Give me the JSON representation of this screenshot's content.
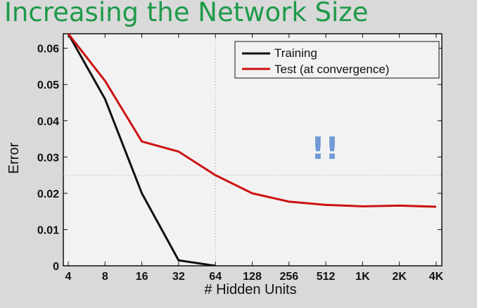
{
  "slide": {
    "title": "Increasing the Network Size"
  },
  "chart_data": {
    "type": "line",
    "title": "",
    "xlabel": "# Hidden Units",
    "ylabel": "Error",
    "x_categories": [
      "4",
      "8",
      "16",
      "32",
      "64",
      "128",
      "256",
      "512",
      "1K",
      "2K",
      "4K"
    ],
    "yticks": [
      "0",
      "0.01",
      "0.02",
      "0.03",
      "0.04",
      "0.05",
      "0.06"
    ],
    "ylim": [
      0,
      0.064
    ],
    "grid": "partial (vertical at 64, horizontal at 0.025)",
    "legend_position": "top-right",
    "series": [
      {
        "name": "Training",
        "color": "#111111",
        "points": [
          {
            "x": "4",
            "y": 0.064
          },
          {
            "x": "8",
            "y": 0.046
          },
          {
            "x": "16",
            "y": 0.02
          },
          {
            "x": "32",
            "y": 0.0015
          },
          {
            "x": "64",
            "y": 0.0
          }
        ]
      },
      {
        "name": "Test (at convergence)",
        "color": "#cc1111",
        "points": [
          {
            "x": "4",
            "y": 0.064
          },
          {
            "x": "8",
            "y": 0.051
          },
          {
            "x": "16",
            "y": 0.0343
          },
          {
            "x": "32",
            "y": 0.0315
          },
          {
            "x": "64",
            "y": 0.025
          },
          {
            "x": "128",
            "y": 0.02
          },
          {
            "x": "256",
            "y": 0.0177
          },
          {
            "x": "512",
            "y": 0.0168
          },
          {
            "x": "1K",
            "y": 0.0164
          },
          {
            "x": "2K",
            "y": 0.0166
          },
          {
            "x": "4K",
            "y": 0.0163
          }
        ]
      }
    ],
    "annotation": "!!"
  }
}
